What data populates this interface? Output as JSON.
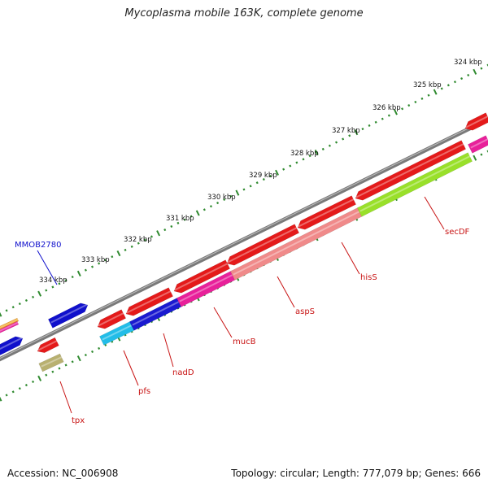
{
  "title": "Mycoplasma mobile 163K, complete genome",
  "footer": {
    "accession": "Accession: NC_006908",
    "summary": "Topology: circular; Length: 777,079 bp; Genes: 666"
  },
  "colors": {
    "backbone": "#7a7a7a",
    "ticks": "#2f8a2f",
    "gene_label": "#c81414",
    "locus_label": "#1010cc"
  },
  "kbp_labels": [
    "324 kbp",
    "325 kbp",
    "326 kbp",
    "327 kbp",
    "328 kbp",
    "329 kbp",
    "330 kbp",
    "331 kbp",
    "332 kbp",
    "333 kbp",
    "334 kbp"
  ],
  "genes": [
    {
      "name": "secDF",
      "color": "#99e02a"
    },
    {
      "name": "hisS",
      "color": "#f08a8a"
    },
    {
      "name": "aspS",
      "color": "#f08a8a"
    },
    {
      "name": "mucB",
      "color": "#e8209a"
    },
    {
      "name": "nadD",
      "color": "#1a1ad0"
    },
    {
      "name": "pfs",
      "color": "#22bde8"
    },
    {
      "name": "tpx",
      "color": "#b8b070"
    }
  ],
  "locus_tags": [
    "MMOB2780"
  ]
}
